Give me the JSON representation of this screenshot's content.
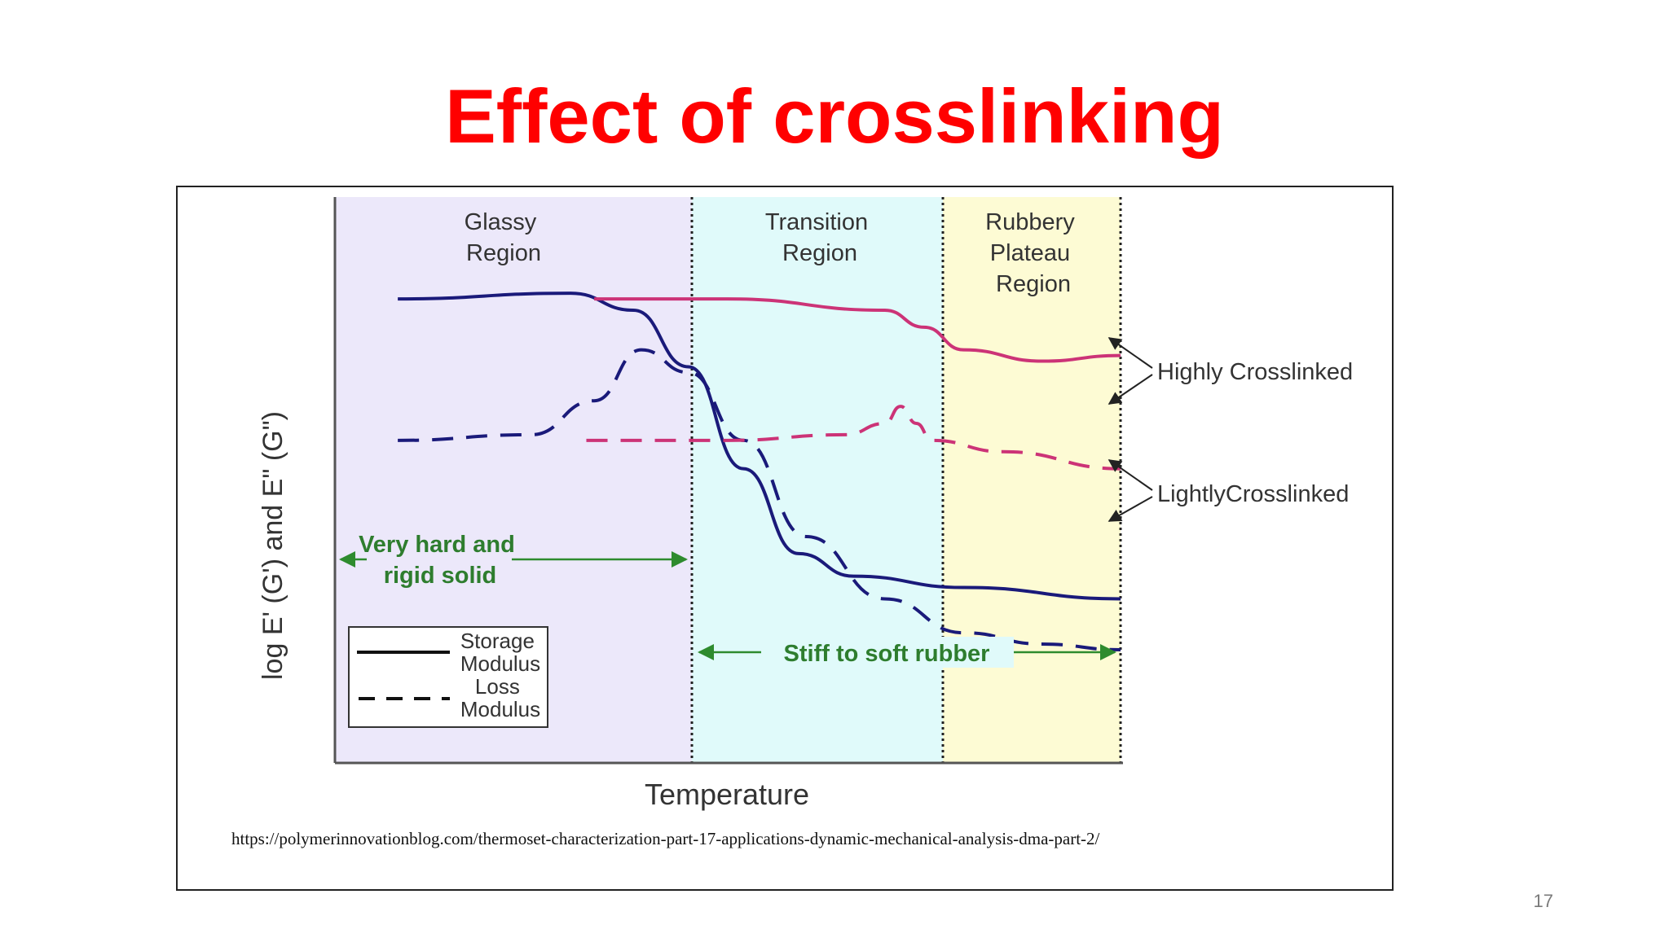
{
  "slide": {
    "title": "Effect of crosslinking",
    "page_number": "17",
    "source": "https://polymerinnovationblog.com/thermoset-characterization-part-17-applications-dynamic-mechanical-analysis-dma-part-2/"
  },
  "chart_data": {
    "type": "line",
    "xlabel": "Temperature",
    "ylabel": "log E' (G') and E\" (G\")",
    "grid": false,
    "regions": [
      {
        "lines": [
          "Glassy",
          "Region"
        ],
        "color": "#ece8fa"
      },
      {
        "lines": [
          "Transition",
          "Region"
        ],
        "color": "#e0fafa"
      },
      {
        "lines": [
          "Rubbery",
          "Plateau",
          "Region"
        ],
        "color": "#fdfbd4"
      }
    ],
    "annotations": {
      "glassy_note": [
        "Very hard and",
        "rigid solid"
      ],
      "rubber_note": "Stiff to soft rubber",
      "highly": "Highly Crosslinked",
      "lightly": "LightlyCrosslinked"
    },
    "legend": {
      "placement": "bottom-left",
      "entries": [
        {
          "lines": [
            "Storage",
            "Modulus"
          ],
          "style": "solid"
        },
        {
          "lines": [
            "Loss",
            "Modulus"
          ],
          "style": "dashed"
        }
      ]
    },
    "series": [
      {
        "name": "Storage Modulus",
        "group": "Lightly Crosslinked",
        "style": "solid",
        "color": "#1a1a7a",
        "points": [
          [
            0.08,
            0.82
          ],
          [
            0.3,
            0.83
          ],
          [
            0.38,
            0.8
          ],
          [
            0.45,
            0.7
          ],
          [
            0.52,
            0.52
          ],
          [
            0.59,
            0.37
          ],
          [
            0.66,
            0.33
          ],
          [
            0.8,
            0.31
          ],
          [
            1.0,
            0.29
          ]
        ]
      },
      {
        "name": "Loss Modulus",
        "group": "Lightly Crosslinked",
        "style": "dashed",
        "color": "#1a1a7a",
        "points": [
          [
            0.08,
            0.57
          ],
          [
            0.25,
            0.58
          ],
          [
            0.33,
            0.64
          ],
          [
            0.39,
            0.73
          ],
          [
            0.45,
            0.69
          ],
          [
            0.52,
            0.57
          ],
          [
            0.6,
            0.4
          ],
          [
            0.7,
            0.29
          ],
          [
            0.8,
            0.23
          ],
          [
            0.9,
            0.21
          ],
          [
            1.0,
            0.2
          ]
        ]
      },
      {
        "name": "Storage Modulus",
        "group": "Highly Crosslinked",
        "style": "solid",
        "color": "#cc3377",
        "points": [
          [
            0.33,
            0.82
          ],
          [
            0.5,
            0.82
          ],
          [
            0.7,
            0.8
          ],
          [
            0.75,
            0.77
          ],
          [
            0.8,
            0.73
          ],
          [
            0.9,
            0.71
          ],
          [
            1.0,
            0.72
          ]
        ]
      },
      {
        "name": "Loss Modulus",
        "group": "Highly Crosslinked",
        "style": "dashed",
        "color": "#cc3377",
        "points": [
          [
            0.32,
            0.57
          ],
          [
            0.5,
            0.57
          ],
          [
            0.65,
            0.58
          ],
          [
            0.7,
            0.6
          ],
          [
            0.72,
            0.63
          ],
          [
            0.74,
            0.6
          ],
          [
            0.76,
            0.57
          ],
          [
            0.85,
            0.55
          ],
          [
            1.0,
            0.52
          ]
        ]
      }
    ]
  }
}
